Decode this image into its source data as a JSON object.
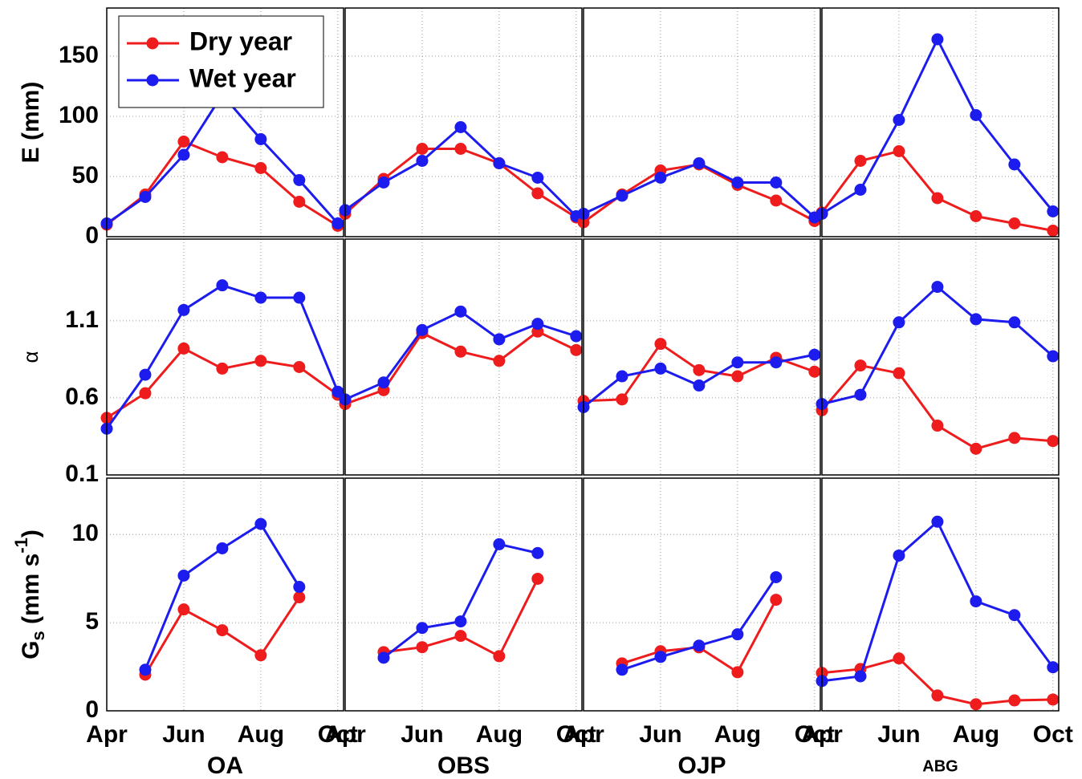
{
  "chart_data": [
    {
      "type": "line",
      "ylabel": "E (mm)",
      "ylim": [
        0,
        190
      ],
      "yticks": [
        0,
        50,
        100,
        150
      ],
      "ytick_labels": true,
      "grid": true,
      "legend": "upper left",
      "series": [
        {
          "name": "Dry year",
          "color": "#ee1c1c",
          "values": [
            10,
            35,
            79,
            66,
            57,
            29,
            9
          ]
        },
        {
          "name": "Wet year",
          "color": "#1c1cee",
          "values": [
            11,
            33,
            68,
            118,
            81,
            47,
            11
          ]
        }
      ]
    },
    {
      "type": "line",
      "ylim": [
        0,
        190
      ],
      "yticks": [
        0,
        50,
        100,
        150
      ],
      "ytick_labels": false,
      "grid": true,
      "series": [
        {
          "color": "#ee1c1c",
          "values": [
            19,
            48,
            73,
            73,
            61,
            36,
            16
          ]
        },
        {
          "color": "#1c1cee",
          "values": [
            22,
            45,
            63,
            91,
            61,
            49,
            17
          ]
        }
      ]
    },
    {
      "type": "line",
      "ylim": [
        0,
        190
      ],
      "yticks": [
        0,
        50,
        100,
        150
      ],
      "ytick_labels": false,
      "grid": true,
      "series": [
        {
          "color": "#ee1c1c",
          "values": [
            12,
            35,
            55,
            60,
            43,
            30,
            13
          ]
        },
        {
          "color": "#1c1cee",
          "values": [
            19,
            34,
            49,
            61,
            45,
            45,
            16
          ]
        }
      ]
    },
    {
      "type": "line",
      "ylim": [
        0,
        190
      ],
      "yticks": [
        0,
        50,
        100,
        150
      ],
      "ytick_labels": false,
      "grid": true,
      "series": [
        {
          "color": "#ee1c1c",
          "values": [
            20,
            63,
            71,
            32,
            17,
            11,
            5
          ]
        },
        {
          "color": "#1c1cee",
          "values": [
            19,
            39,
            97,
            164,
            101,
            60,
            21
          ]
        }
      ]
    },
    {
      "type": "line",
      "ylabel": "α",
      "ylim": [
        0.1,
        1.63
      ],
      "yticks": [
        0.1,
        0.6,
        1.1
      ],
      "ytick_labels": true,
      "grid": true,
      "series": [
        {
          "color": "#ee1c1c",
          "values": [
            0.47,
            0.63,
            0.92,
            0.79,
            0.84,
            0.8,
            0.62
          ]
        },
        {
          "color": "#1c1cee",
          "values": [
            0.4,
            0.75,
            1.17,
            1.33,
            1.25,
            1.25,
            0.64
          ]
        }
      ]
    },
    {
      "type": "line",
      "ylim": [
        0.1,
        1.63
      ],
      "yticks": [
        0.1,
        0.6,
        1.1
      ],
      "ytick_labels": false,
      "grid": true,
      "series": [
        {
          "color": "#ee1c1c",
          "values": [
            0.56,
            0.65,
            1.02,
            0.9,
            0.84,
            1.03,
            0.91
          ]
        },
        {
          "color": "#1c1cee",
          "values": [
            0.59,
            0.7,
            1.04,
            1.16,
            0.98,
            1.08,
            1.0
          ]
        }
      ]
    },
    {
      "type": "line",
      "ylim": [
        0.1,
        1.63
      ],
      "yticks": [
        0.1,
        0.6,
        1.1
      ],
      "ytick_labels": false,
      "grid": true,
      "series": [
        {
          "color": "#ee1c1c",
          "values": [
            0.58,
            0.59,
            0.95,
            0.78,
            0.74,
            0.86,
            0.77
          ]
        },
        {
          "color": "#1c1cee",
          "values": [
            0.54,
            0.74,
            0.79,
            0.68,
            0.83,
            0.83,
            0.88
          ]
        }
      ]
    },
    {
      "type": "line",
      "ylim": [
        0.1,
        1.63
      ],
      "yticks": [
        0.1,
        0.6,
        1.1
      ],
      "ytick_labels": false,
      "grid": true,
      "series": [
        {
          "color": "#ee1c1c",
          "values": [
            0.52,
            0.81,
            0.76,
            0.42,
            0.27,
            0.34,
            0.32
          ]
        },
        {
          "color": "#1c1cee",
          "values": [
            0.56,
            0.62,
            1.09,
            1.32,
            1.11,
            1.09,
            0.87
          ]
        }
      ]
    },
    {
      "type": "line",
      "ylabel_parts": [
        {
          "text": "G"
        },
        {
          "text": "s",
          "shift": "sub"
        },
        {
          "text": " (mm s"
        },
        {
          "text": "-1",
          "shift": "super"
        },
        {
          "text": ")"
        }
      ],
      "ylim": [
        0,
        13.2
      ],
      "yticks": [
        0,
        5,
        10
      ],
      "ytick_labels": true,
      "grid": true,
      "xlabel": "OA",
      "categories": [
        "Apr",
        null,
        "Jun",
        null,
        "Aug",
        null,
        "Oct"
      ],
      "series": [
        {
          "color": "#ee1c1c",
          "values": [
            null,
            2.05,
            5.75,
            4.57,
            3.15,
            6.44,
            null
          ]
        },
        {
          "color": "#1c1cee",
          "values": [
            null,
            2.33,
            7.67,
            9.22,
            10.6,
            7.03,
            null
          ]
        }
      ]
    },
    {
      "type": "line",
      "ylim": [
        0,
        13.2
      ],
      "yticks": [
        0,
        5,
        10
      ],
      "ytick_labels": false,
      "grid": true,
      "xlabel": "OBS",
      "categories": [
        "Apr",
        null,
        "Jun",
        null,
        "Aug",
        null,
        "Oct"
      ],
      "series": [
        {
          "color": "#ee1c1c",
          "values": [
            null,
            3.33,
            3.61,
            4.25,
            3.1,
            7.49,
            null
          ]
        },
        {
          "color": "#1c1cee",
          "values": [
            null,
            3.01,
            4.7,
            5.07,
            9.45,
            8.95,
            null
          ]
        }
      ]
    },
    {
      "type": "line",
      "ylim": [
        0,
        13.2
      ],
      "yticks": [
        0,
        5,
        10
      ],
      "ytick_labels": false,
      "grid": true,
      "xlabel": "OJP",
      "categories": [
        "Apr",
        null,
        "Jun",
        null,
        "Aug",
        null,
        "Oct"
      ],
      "series": [
        {
          "color": "#ee1c1c",
          "values": [
            null,
            2.69,
            3.38,
            3.6,
            2.19,
            6.3,
            null
          ]
        },
        {
          "color": "#1c1cee",
          "values": [
            null,
            2.33,
            3.06,
            3.7,
            4.34,
            7.58,
            null
          ]
        }
      ]
    },
    {
      "type": "line",
      "ylim": [
        0,
        13.2
      ],
      "yticks": [
        0,
        5,
        10
      ],
      "ytick_labels": false,
      "grid": true,
      "xlabel": "ABG",
      "categories": [
        "Apr",
        null,
        "Jun",
        null,
        "Aug",
        null,
        "Oct"
      ],
      "series": [
        {
          "color": "#ee1c1c",
          "values": [
            2.15,
            2.37,
            2.97,
            0.87,
            0.37,
            0.59,
            0.64
          ]
        },
        {
          "color": "#1c1cee",
          "values": [
            1.69,
            1.96,
            8.81,
            10.73,
            6.21,
            5.43,
            2.47
          ]
        }
      ]
    }
  ]
}
